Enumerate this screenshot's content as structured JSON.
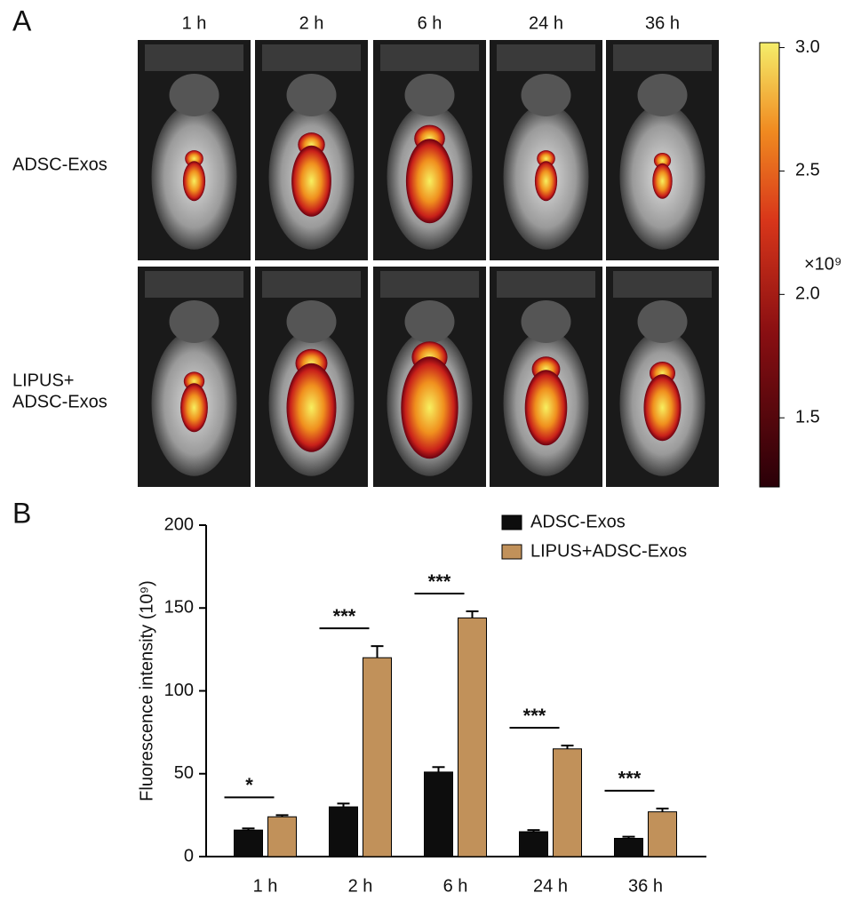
{
  "panel_labels": [
    "A",
    "B"
  ],
  "chart_data": [
    {
      "type": "image_grid",
      "columns": [
        "1 h",
        "2 h",
        "6 h",
        "24 h",
        "36 h"
      ],
      "rows": [
        [
          "ADSC-Exos"
        ],
        [
          "LIPUS+",
          "ADSC-Exos"
        ]
      ],
      "colorbar": {
        "clim": [
          1.22,
          3.02
        ],
        "ticks": [
          1.5,
          {
            "value": 2.0,
            "label": "2.0"
          },
          2.5,
          {
            "value": 3.0,
            "label": "3.0"
          }
        ],
        "label": "×10⁹"
      }
    },
    {
      "type": "bar",
      "ylabel": "Fluorescence intensity (10⁹)",
      "categories": [
        "1 h",
        "2 h",
        "6 h",
        "24 h",
        "36 h"
      ],
      "series": [
        {
          "name": "ADSC-Exos",
          "color": "#0d0d0d",
          "values": [
            16,
            30,
            51,
            15,
            11
          ],
          "errors": [
            1,
            2,
            3,
            1,
            1
          ]
        },
        {
          "name": "LIPUS+ADSC-Exos",
          "color": "#c1915a",
          "values": [
            24,
            120,
            144,
            65,
            27
          ],
          "errors": [
            1,
            7,
            4,
            2,
            2
          ]
        }
      ],
      "significance": [
        "*",
        "***",
        "***",
        "***",
        "***"
      ],
      "ylim": [
        0,
        200
      ],
      "yticks": [
        0,
        50,
        100,
        150,
        200
      ]
    }
  ]
}
